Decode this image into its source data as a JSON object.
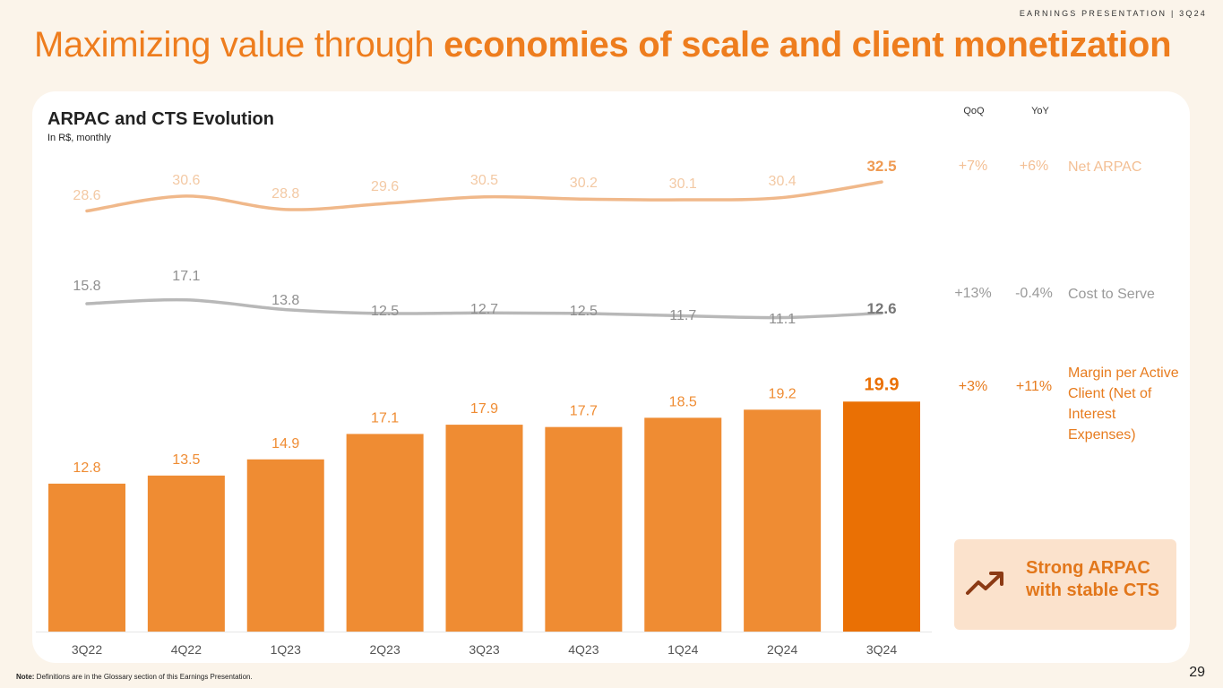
{
  "header": {
    "tag": "EARNINGS PRESENTATION | 3Q24",
    "title_light": "Maximizing value through ",
    "title_bold": "economies of scale and client monetization"
  },
  "chart_data": {
    "type": "bar+line",
    "title": "ARPAC and CTS Evolution",
    "subtitle": "In R$, monthly",
    "categories": [
      "3Q22",
      "4Q22",
      "1Q23",
      "2Q23",
      "3Q23",
      "4Q23",
      "1Q24",
      "2Q24",
      "3Q24"
    ],
    "bars": {
      "name": "Margin per Active Client (Net of Interest Expenses)",
      "values": [
        12.8,
        13.5,
        14.9,
        17.1,
        17.9,
        17.7,
        18.5,
        19.2,
        19.9
      ],
      "labels": [
        "12.8",
        "13.5",
        "14.9",
        "17.1",
        "17.9",
        "17.7",
        "18.5",
        "19.2",
        "19.9"
      ],
      "color": "#ef8c33",
      "highlight_color": "#ea7004",
      "ylim": [
        0,
        21
      ]
    },
    "series": [
      {
        "name": "Net ARPAC",
        "values": [
          28.6,
          30.6,
          28.8,
          29.6,
          30.5,
          30.2,
          30.1,
          30.4,
          32.5
        ],
        "labels": [
          "28.6",
          "30.6",
          "28.8",
          "29.6",
          "30.5",
          "30.2",
          "30.1",
          "30.4",
          "32.5"
        ],
        "color": "#f0b88a",
        "label_color": "#f3c9a4",
        "highlight_color": "#ef9a52"
      },
      {
        "name": "Cost to Serve",
        "values": [
          15.8,
          17.1,
          13.8,
          12.5,
          12.7,
          12.5,
          11.7,
          11.1,
          12.6
        ],
        "labels": [
          "15.8",
          "17.1",
          "13.8",
          "12.5",
          "12.7",
          "12.5",
          "11.7",
          "11.1",
          "12.6"
        ],
        "color": "#b8b8b8",
        "label_color": "#8f8f8f",
        "highlight_color": "#777777"
      }
    ]
  },
  "metrics": {
    "qoq_header": "QoQ",
    "yoy_header": "YoY",
    "rows": [
      {
        "qoq": "+7%",
        "yoy": "+6%",
        "label": "Net ARPAC",
        "color": "#f3bf94"
      },
      {
        "qoq": "+13%",
        "yoy": "-0.4%",
        "label": "Cost to Serve",
        "color": "#9a9a9a"
      },
      {
        "qoq": "+3%",
        "yoy": "+11%",
        "label": "Margin per Active Client (Net of Interest Expenses)",
        "color": "#e77c1f"
      }
    ]
  },
  "callout": {
    "text": "Strong ARPAC with stable CTS",
    "icon": "trending-up-icon",
    "icon_color": "#8b3a14"
  },
  "footnote": {
    "bold": "Note:",
    "text": " Definitions are in the Glossary section of this Earnings Presentation."
  },
  "page_number": "29"
}
